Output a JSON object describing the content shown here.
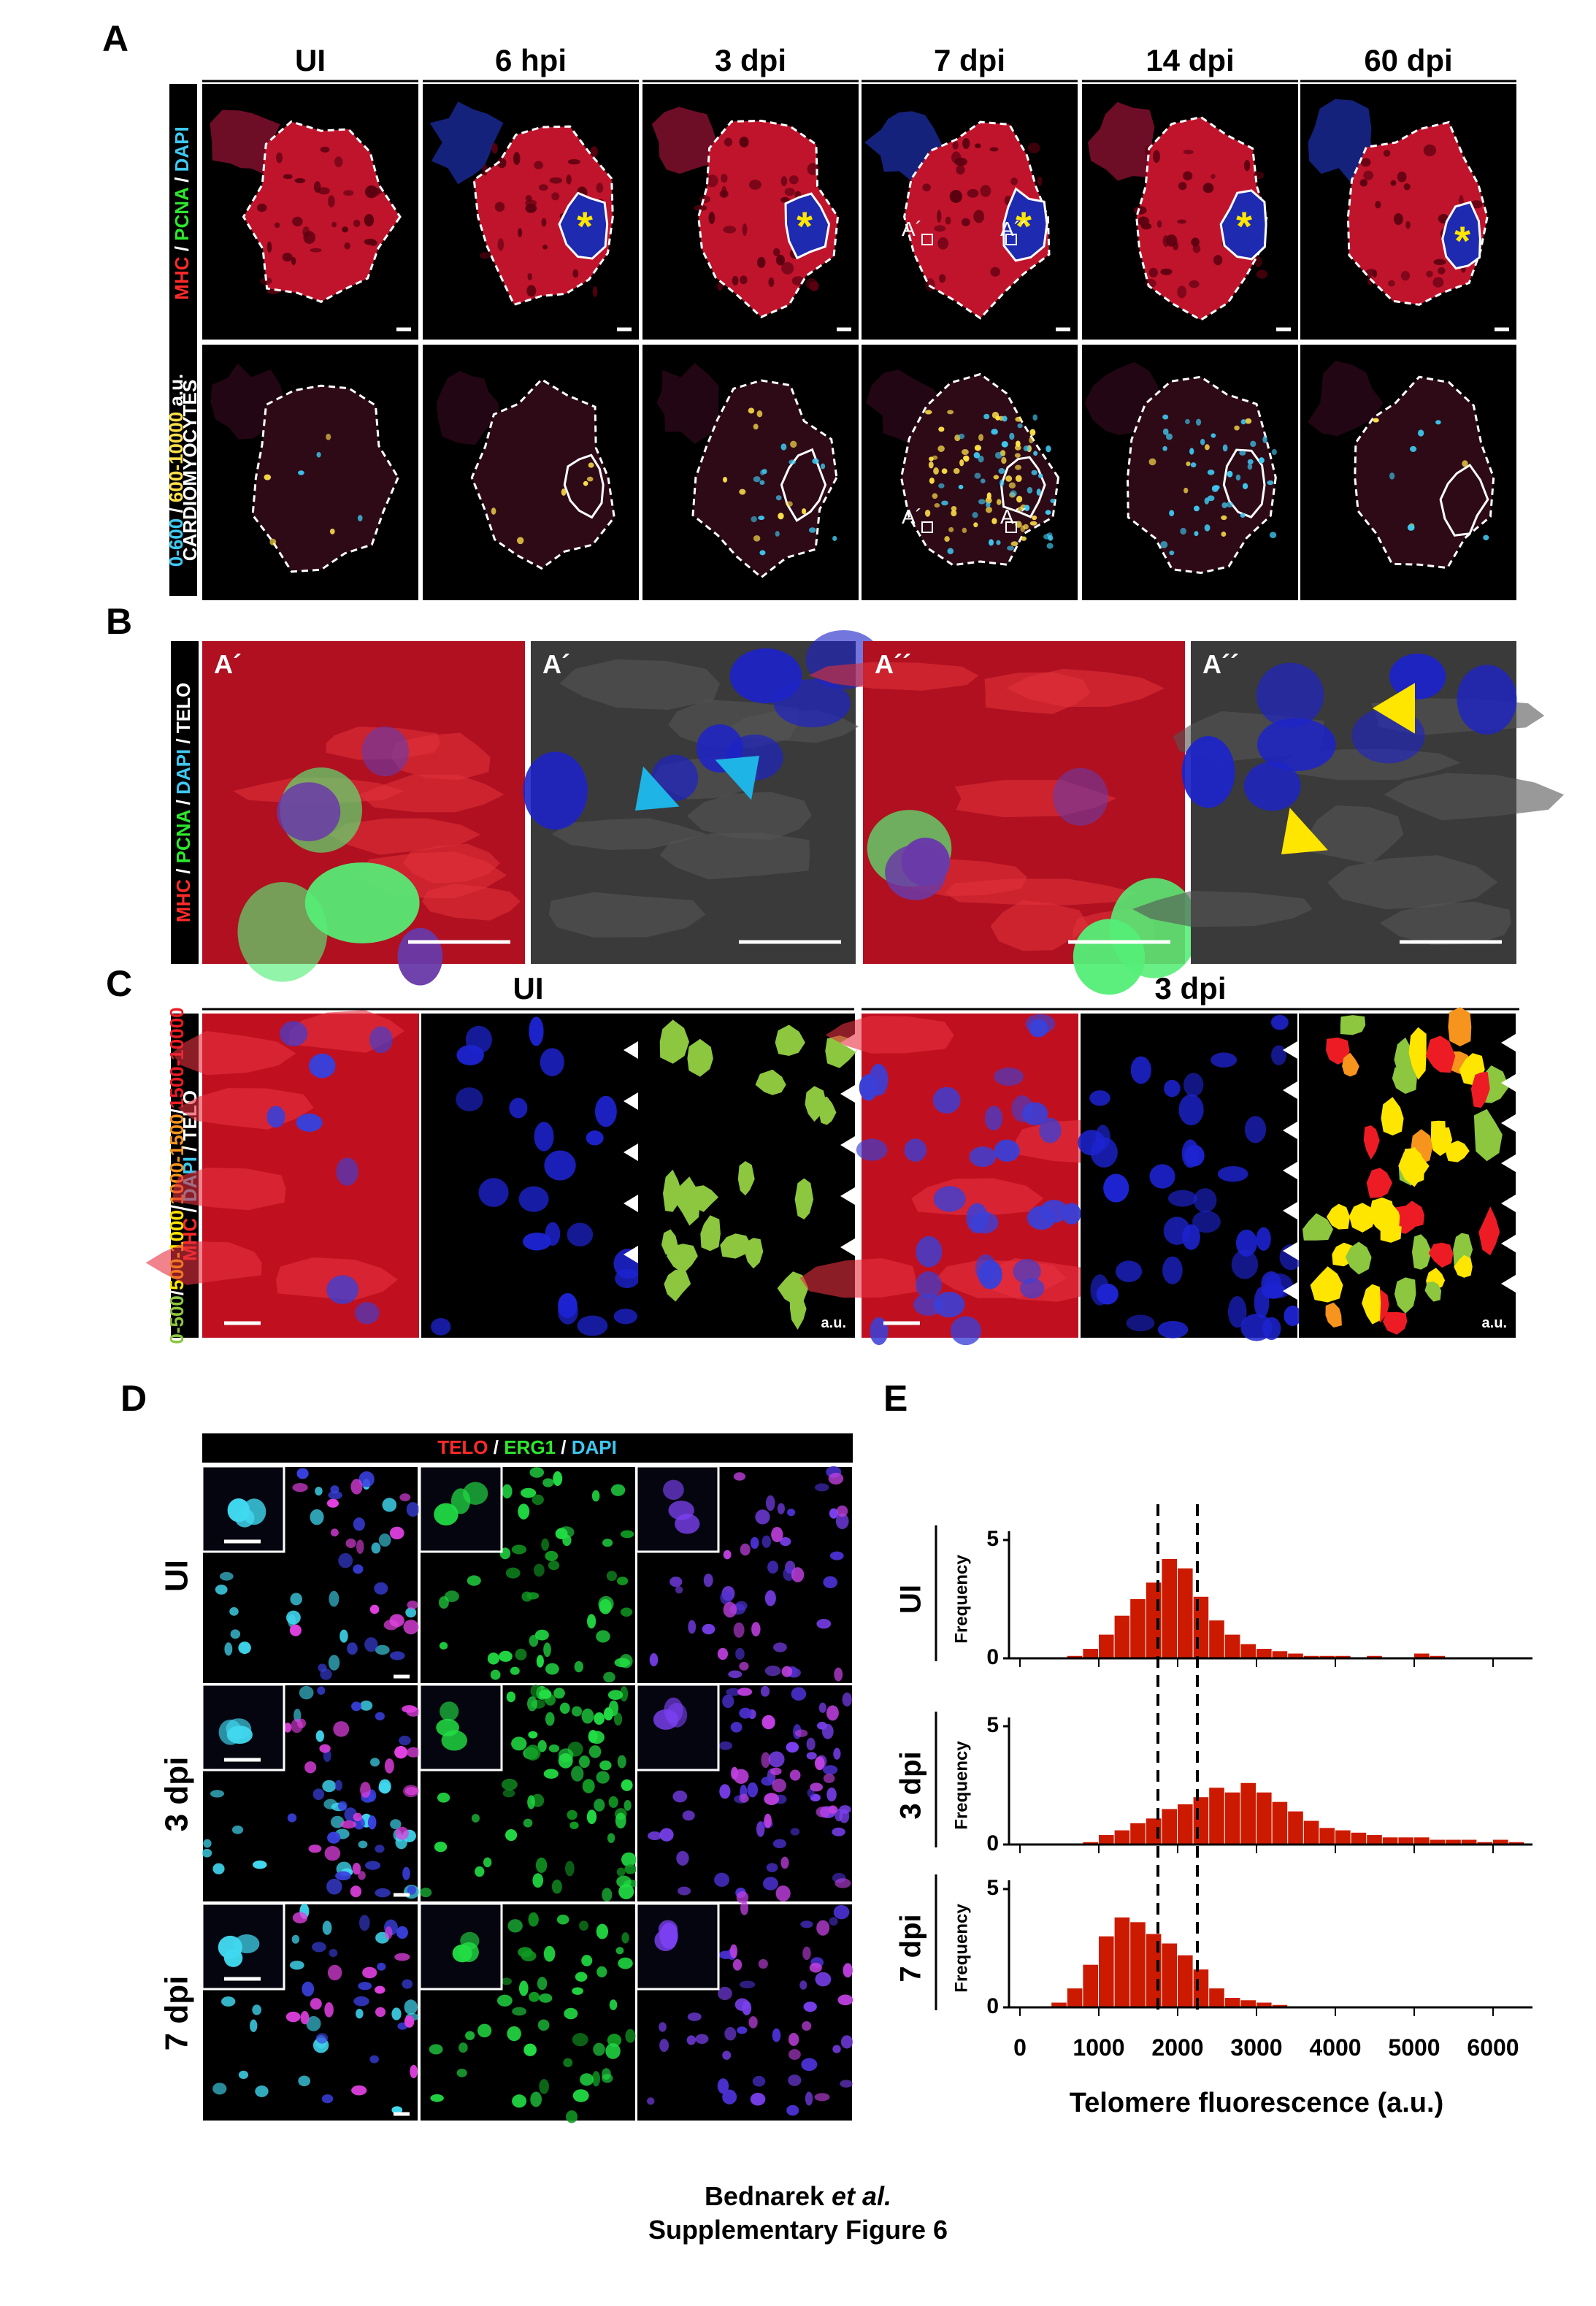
{
  "panel_a": {
    "letter": "A",
    "columns": [
      "UI",
      "6 hpi",
      "3 dpi",
      "7 dpi",
      "14 dpi",
      "60 dpi"
    ],
    "row1_label": [
      {
        "text": "MHC",
        "color": "#ff2a2a"
      },
      {
        "text": " / ",
        "color": "#ffffff"
      },
      {
        "text": "PCNA",
        "color": "#2ee82e"
      },
      {
        "text": " / ",
        "color": "#ffffff"
      },
      {
        "text": "DAPI",
        "color": "#3ec8f0"
      }
    ],
    "row2_label": [
      {
        "text": "0-600",
        "color": "#3ec8f0"
      },
      {
        "text": " / ",
        "color": "#ffffff"
      },
      {
        "text": "600-10000",
        "color": "#ffe14a"
      },
      {
        "text": " a.u.",
        "color": "#ffffff"
      }
    ],
    "row2_label_line2": "CARDIOMYOCYTES",
    "injury_marker": "*",
    "image_labels": [
      "A´",
      "A´´"
    ]
  },
  "panel_b": {
    "letter": "B",
    "label": [
      {
        "text": "MHC",
        "color": "#ff2a2a"
      },
      {
        "text": " / ",
        "color": "#ffffff"
      },
      {
        "text": "PCNA",
        "color": "#2ee82e"
      },
      {
        "text": " / ",
        "color": "#ffffff"
      },
      {
        "text": "DAPI",
        "color": "#3ec8f0"
      },
      {
        "text": " / ",
        "color": "#ffffff"
      },
      {
        "text": "TELO",
        "color": "#ffffff"
      }
    ],
    "image_labels": [
      "A´",
      "A´",
      "A´´",
      "A´´"
    ]
  },
  "panel_c": {
    "letter": "C",
    "groups": [
      "UI",
      "3 dpi"
    ],
    "label_line1": [
      {
        "text": "0-500",
        "color": "#8dc63f"
      },
      {
        "text": "/",
        "color": "#ffffff"
      },
      {
        "text": "500-1000",
        "color": "#ffe600"
      },
      {
        "text": "/",
        "color": "#ffffff"
      },
      {
        "text": "1000-1500",
        "color": "#f7941d"
      },
      {
        "text": "/",
        "color": "#ffffff"
      },
      {
        "text": "1500-10000",
        "color": "#ed1c24"
      }
    ],
    "label_line2": [
      {
        "text": "MHC",
        "color": "#ff2a2a"
      },
      {
        "text": " / ",
        "color": "#ffffff"
      },
      {
        "text": "DAPI",
        "color": "#3ec8f0"
      },
      {
        "text": " / ",
        "color": "#ffffff"
      },
      {
        "text": "TELO",
        "color": "#ffffff"
      }
    ],
    "unit_labels": [
      "a.u.",
      "a.u."
    ]
  },
  "panel_d": {
    "letter": "D",
    "header": [
      {
        "text": "TELO",
        "color": "#ff2a2a"
      },
      {
        "text": " / ",
        "color": "#ffffff"
      },
      {
        "text": "ERG1",
        "color": "#2ee82e"
      },
      {
        "text": " / ",
        "color": "#ffffff"
      },
      {
        "text": "DAPI",
        "color": "#3ec8f0"
      }
    ],
    "row_labels": [
      "UI",
      "3 dpi",
      "7 dpi"
    ]
  },
  "panel_e": {
    "letter": "E",
    "type": "histogram",
    "color": "#cc1a00",
    "bins": [
      0,
      200,
      400,
      600,
      800,
      1000,
      1200,
      1400,
      1600,
      1800,
      2000,
      2200,
      2400,
      2600,
      2800,
      3000,
      3200,
      3400,
      3600,
      3800,
      4000,
      4200,
      4400,
      4600,
      4800,
      5000,
      5200,
      5400,
      5600,
      5800,
      6000,
      6200,
      6400
    ],
    "rows": [
      {
        "label": "UI",
        "y_label": "Frequency",
        "values": [
          0,
          0,
          0,
          0.1,
          0.4,
          1.0,
          1.8,
          2.5,
          3.2,
          4.2,
          3.8,
          2.6,
          1.6,
          1.0,
          0.6,
          0.4,
          0.3,
          0.2,
          0.1,
          0.1,
          0.1,
          0,
          0.1,
          0,
          0,
          0.2,
          0.1,
          0,
          0,
          0,
          0,
          0
        ]
      },
      {
        "label": "3 dpi",
        "y_label": "Frequency",
        "values": [
          0,
          0,
          0,
          0,
          0.1,
          0.4,
          0.6,
          0.9,
          1.1,
          1.5,
          1.7,
          2.0,
          2.4,
          2.2,
          2.6,
          2.2,
          1.8,
          1.4,
          1.0,
          0.7,
          0.6,
          0.5,
          0.4,
          0.3,
          0.3,
          0.3,
          0.2,
          0.2,
          0.2,
          0.1,
          0.2,
          0.1
        ]
      },
      {
        "label": "7 dpi",
        "y_label": "Frequency",
        "values": [
          0,
          0,
          0.2,
          0.8,
          1.8,
          3.0,
          3.8,
          3.6,
          3.1,
          2.7,
          2.2,
          1.6,
          0.8,
          0.4,
          0.3,
          0.2,
          0.1,
          0,
          0,
          0,
          0,
          0,
          0,
          0,
          0,
          0,
          0,
          0,
          0,
          0,
          0,
          0
        ]
      }
    ],
    "ylim": [
      0,
      5
    ],
    "yticks": [
      0,
      5
    ],
    "xlim": [
      0,
      6500
    ],
    "xticks": [
      0,
      1000,
      2000,
      3000,
      4000,
      5000,
      6000
    ],
    "x_label": "Telomere fluorescence (a.u.)",
    "reference_lines": [
      1750,
      2250
    ]
  },
  "footer": {
    "author": "Bednarek ",
    "author_suffix": "et al.",
    "caption": "Supplementary Figure 6"
  }
}
